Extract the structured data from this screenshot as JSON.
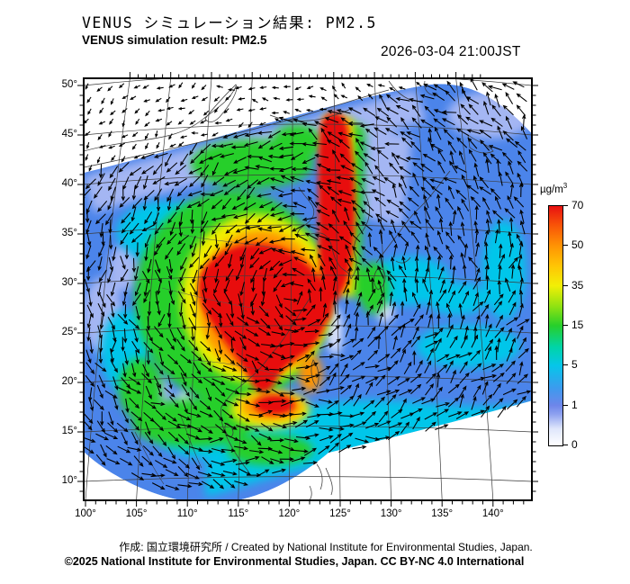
{
  "header": {
    "title_ja": "VENUS シミュレーション結果: PM2.5",
    "title_en": "VENUS simulation result: PM2.5",
    "timestamp": "2026-03-04 21:00JST"
  },
  "axes": {
    "lat": [
      "50°",
      "45°",
      "40°",
      "35°",
      "30°",
      "25°",
      "20°",
      "15°",
      "10°"
    ],
    "lon": [
      "100°",
      "105°",
      "110°",
      "115°",
      "120°",
      "125°",
      "130°",
      "135°",
      "140°"
    ]
  },
  "colorbar": {
    "unit": "µg/m³",
    "ticks": [
      "70",
      "50",
      "35",
      "15",
      "5",
      "1",
      "0"
    ],
    "tick_colors": [
      "#e81111",
      "#ff9404",
      "#f2ef06",
      "#27cf2b",
      "#06c6ea",
      "#6e86ea",
      "#ffffff"
    ]
  },
  "footer": {
    "line1": "作成: 国立環境研究所 / Created by National Institute for Environmental Studies, Japan.",
    "line2": "©2025 National Institute for Environmental Studies, Japan. CC BY-NC 4.0 International"
  },
  "chart_data": {
    "type": "heatmap",
    "variable": "PM2.5",
    "unit": "µg/m³",
    "timestamp": "2026-03-04 21:00JST",
    "lon_ticks_deg": [
      100,
      105,
      110,
      115,
      120,
      125,
      130,
      135,
      140
    ],
    "lat_ticks_deg": [
      50,
      45,
      40,
      35,
      30,
      25,
      20,
      15,
      10
    ],
    "scale_ticks": [
      0,
      1,
      5,
      15,
      35,
      50,
      70
    ],
    "scale_colors": [
      "#ffffff",
      "#6e86ea",
      "#06c6ea",
      "#27cf2b",
      "#f2ef06",
      "#ff9404",
      "#e81111"
    ],
    "overlay": "wind vector arrows over concentration field",
    "high_regions": [
      "red core ≥70 µg/m³ over eastern China ~25–35°N, 105–122°E",
      "red/orange plume along ~122–125°E extending north to ~45°N",
      "green 15–35 µg/m³ ring around core; cyan 5–15 over seas SE of Japan",
      "blue ≤5 over Japan, far west and domain fringes; white outside model domain"
    ]
  }
}
